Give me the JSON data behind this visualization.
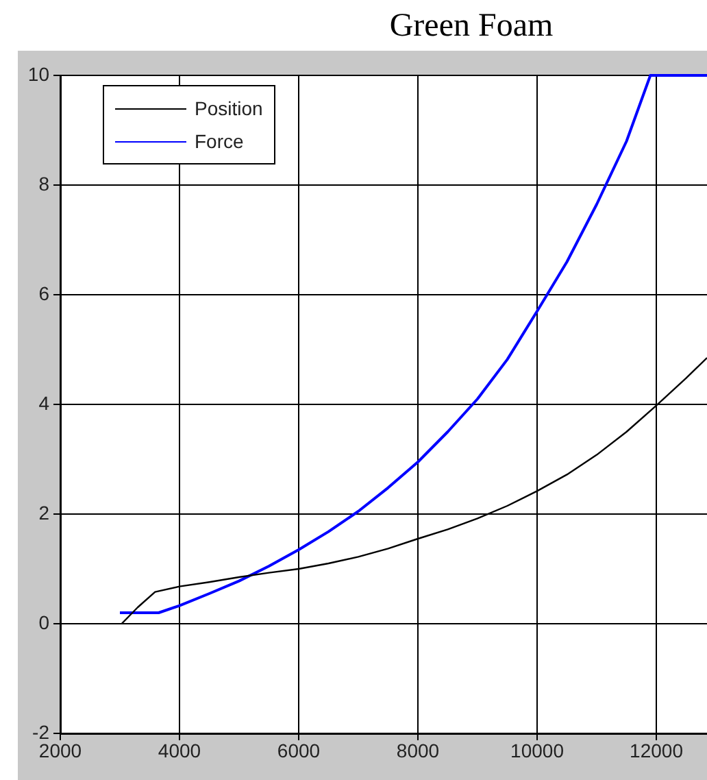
{
  "chart_data": {
    "type": "line",
    "title": "Green Foam",
    "xlim": [
      2000,
      12850
    ],
    "xticks": [
      2000,
      4000,
      6000,
      8000,
      10000,
      12000
    ],
    "ylim": [
      -2,
      10
    ],
    "yticks": [
      -2,
      0,
      2,
      4,
      6,
      8,
      10
    ],
    "grid": true,
    "legend": "top left",
    "marker": "none",
    "line_style": "solid",
    "series": [
      {
        "name": "Position",
        "color": "#000000",
        "x": [
          3030,
          3300,
          3590,
          4000,
          4500,
          5000,
          5500,
          6000,
          6500,
          7000,
          7500,
          8000,
          8500,
          9000,
          9500,
          10000,
          10500,
          11000,
          11500,
          12000,
          12500,
          12850
        ],
        "values": [
          0,
          0.3,
          0.58,
          0.68,
          0.76,
          0.85,
          0.93,
          1.0,
          1.1,
          1.22,
          1.37,
          1.55,
          1.72,
          1.92,
          2.15,
          2.42,
          2.72,
          3.08,
          3.5,
          3.98,
          4.48,
          4.85
        ]
      },
      {
        "name": "Force",
        "color": "#0000ff",
        "x": [
          3000,
          3300,
          3650,
          4000,
          4500,
          5000,
          5500,
          6000,
          6500,
          7000,
          7500,
          8000,
          8500,
          9000,
          9500,
          10000,
          10500,
          11000,
          11500,
          11900,
          12850
        ],
        "values": [
          0.2,
          0.2,
          0.2,
          0.33,
          0.55,
          0.78,
          1.05,
          1.35,
          1.68,
          2.05,
          2.48,
          2.95,
          3.5,
          4.1,
          4.82,
          5.7,
          6.6,
          7.65,
          8.8,
          10,
          10
        ]
      }
    ]
  }
}
